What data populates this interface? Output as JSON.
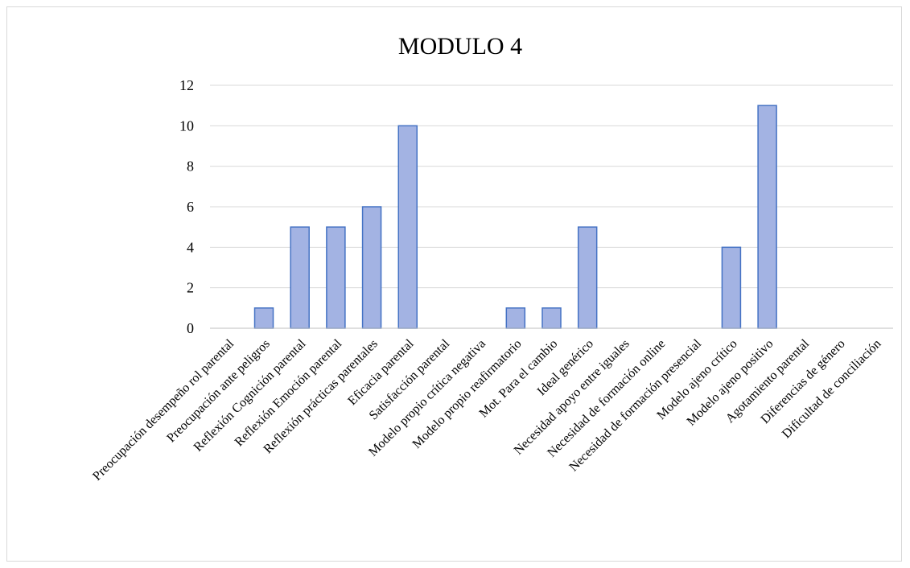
{
  "chart_data": {
    "type": "bar",
    "title": "MODULO 4",
    "xlabel": "",
    "ylabel": "",
    "ylim": [
      0,
      12
    ],
    "yticks": [
      0,
      2,
      4,
      6,
      8,
      10,
      12
    ],
    "grid": true,
    "legend": "none",
    "colors": {
      "bar_fill": "#a3b3e3",
      "bar_stroke": "#4472c4",
      "grid": "#d9d9d9"
    },
    "categories": [
      "Preocupación desempeño rol parental",
      "Preocupación ante peligros",
      "Reflexión Cognición parental",
      "Reflexión Emoción parental",
      "Reflexión prácticas parentales",
      "Eficacia parental",
      "Satisfacción parental",
      "Modelo propio crítica negativa",
      "Modelo propio reafirmatorio",
      "Mot. Para el cambio",
      "Ideal genérico",
      "Necesidad apoyo entre iguales",
      "Necesidad de formación online",
      "Necesidad de formación presencial",
      "Modelo ajeno crítico",
      "Modelo ajeno positivo",
      "Agotamiento parental",
      "Diferencias de género",
      "Dificultad de conciliación"
    ],
    "values": [
      0,
      1,
      5,
      5,
      6,
      10,
      0,
      0,
      1,
      1,
      5,
      0,
      0,
      0,
      4,
      11,
      0,
      0,
      0
    ]
  }
}
